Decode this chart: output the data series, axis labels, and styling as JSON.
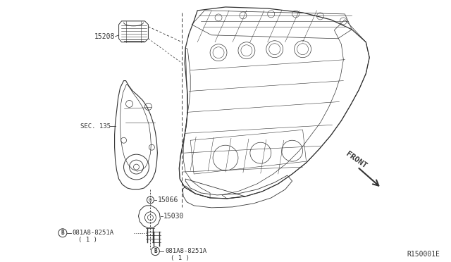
{
  "bg_color": "#f5f5f5",
  "line_color": "#333333",
  "fig_ref": "R150001E",
  "labels": {
    "oil_filter": "15208",
    "sec135": "SEC. 135",
    "drain_plug1": "15066",
    "drain_plug2": "15030",
    "bolt1_label": "081A8-8251A",
    "bolt1_qty": "( 1 )",
    "bolt2_label": "081A8-8251A",
    "bolt2_qty": "( 1 )",
    "front": "FRONT"
  }
}
